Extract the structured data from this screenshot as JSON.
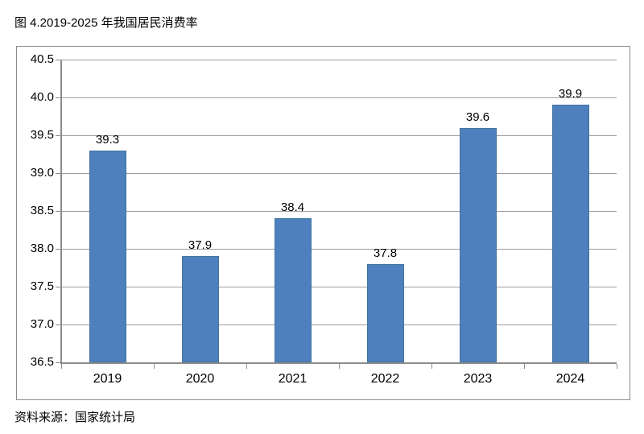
{
  "title": "图 4.2019-2025 年我国居民消费率",
  "source": "资料来源：国家统计局",
  "chart_data": {
    "type": "bar",
    "title": "图 4.2019-2025 年我国居民消费率",
    "categories": [
      "2019",
      "2020",
      "2021",
      "2022",
      "2023",
      "2024"
    ],
    "values": [
      39.3,
      37.9,
      38.4,
      37.8,
      39.6,
      39.9
    ],
    "data_labels": [
      "39.3",
      "37.9",
      "38.4",
      "37.8",
      "39.6",
      "39.9"
    ],
    "xlabel": "",
    "ylabel": "",
    "ylim": [
      36.5,
      40.5
    ],
    "ytick_step": 0.5,
    "yticks": [
      "40.5",
      "40.0",
      "39.5",
      "39.0",
      "38.5",
      "38.0",
      "37.5",
      "37.0",
      "36.5"
    ],
    "grid": true,
    "legend": "none",
    "colors": {
      "bar_fill": "#4d80bc",
      "bar_edge": "#44739f",
      "gridline": "#9d9d9d",
      "axis": "#8c8c8c",
      "text": "#000000",
      "frame_border": "#8c8c8c"
    },
    "source_note": "资料来源：国家统计局"
  }
}
